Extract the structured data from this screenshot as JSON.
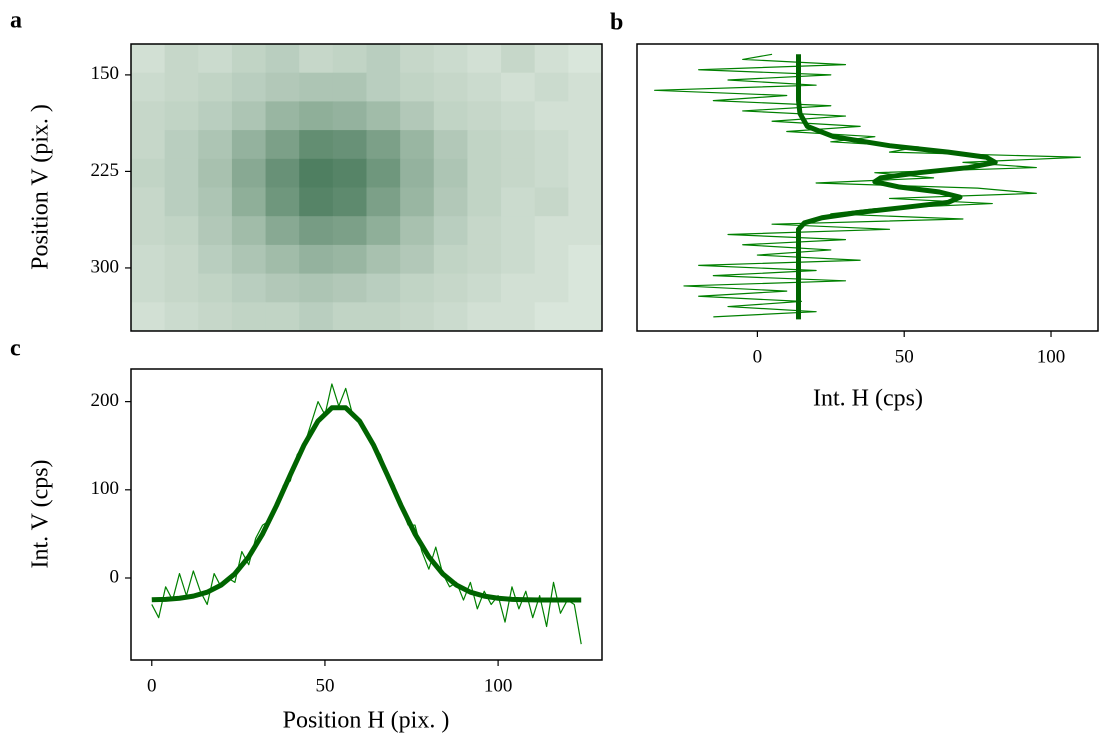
{
  "chart_data": [
    {
      "type": "heatmap",
      "panel_label": "a",
      "ylabel": "Position V (pix. )",
      "xlim": [
        -6,
        130
      ],
      "ylim": [
        349,
        126
      ],
      "yticks": [
        150,
        225,
        300
      ],
      "colormap": [
        "#f7fcf5",
        "#00441b"
      ],
      "values": [
        [
          0.15,
          0.2,
          0.18,
          0.22,
          0.25,
          0.2,
          0.22,
          0.25,
          0.2,
          0.18,
          0.15,
          0.2,
          0.15,
          0.12
        ],
        [
          0.18,
          0.2,
          0.22,
          0.25,
          0.28,
          0.3,
          0.3,
          0.25,
          0.22,
          0.2,
          0.18,
          0.15,
          0.18,
          0.15
        ],
        [
          0.2,
          0.22,
          0.25,
          0.3,
          0.38,
          0.42,
          0.4,
          0.35,
          0.28,
          0.22,
          0.2,
          0.18,
          0.15,
          0.15
        ],
        [
          0.2,
          0.25,
          0.3,
          0.4,
          0.5,
          0.6,
          0.58,
          0.5,
          0.38,
          0.28,
          0.22,
          0.2,
          0.18,
          0.15
        ],
        [
          0.22,
          0.25,
          0.32,
          0.45,
          0.58,
          0.68,
          0.65,
          0.55,
          0.4,
          0.3,
          0.22,
          0.2,
          0.18,
          0.15
        ],
        [
          0.2,
          0.25,
          0.3,
          0.42,
          0.55,
          0.65,
          0.62,
          0.5,
          0.38,
          0.28,
          0.22,
          0.18,
          0.2,
          0.15
        ],
        [
          0.2,
          0.22,
          0.28,
          0.35,
          0.45,
          0.52,
          0.5,
          0.42,
          0.32,
          0.25,
          0.2,
          0.18,
          0.15,
          0.15
        ],
        [
          0.18,
          0.2,
          0.25,
          0.3,
          0.35,
          0.4,
          0.38,
          0.32,
          0.28,
          0.22,
          0.2,
          0.18,
          0.15,
          0.12
        ],
        [
          0.18,
          0.2,
          0.22,
          0.25,
          0.28,
          0.3,
          0.28,
          0.25,
          0.22,
          0.2,
          0.18,
          0.15,
          0.15,
          0.12
        ],
        [
          0.15,
          0.18,
          0.2,
          0.22,
          0.22,
          0.25,
          0.22,
          0.22,
          0.2,
          0.18,
          0.15,
          0.15,
          0.12,
          0.12
        ]
      ]
    },
    {
      "type": "line",
      "panel_label": "b",
      "xlabel": "Int. H (cps)",
      "xlim": [
        -41,
        116
      ],
      "ylim": [
        349,
        126
      ],
      "xticks": [
        0,
        50,
        100
      ],
      "series": [
        {
          "color": "#008000",
          "width": 1.2,
          "y": [
            134,
            138,
            142,
            146,
            150,
            154,
            158,
            162,
            166,
            170,
            174,
            178,
            182,
            186,
            190,
            194,
            198,
            202,
            206,
            210,
            214,
            218,
            222,
            226,
            230,
            234,
            238,
            242,
            246,
            250,
            254,
            258,
            262,
            266,
            270,
            274,
            278,
            282,
            286,
            290,
            294,
            298,
            302,
            306,
            310,
            314,
            318,
            322,
            326,
            330,
            334,
            338
          ],
          "values": [
            5,
            -5,
            30,
            -20,
            25,
            -10,
            20,
            -35,
            10,
            -15,
            25,
            -5,
            30,
            5,
            35,
            10,
            40,
            25,
            55,
            45,
            110,
            70,
            95,
            40,
            60,
            20,
            75,
            95,
            45,
            80,
            40,
            25,
            70,
            5,
            45,
            -10,
            30,
            -5,
            25,
            0,
            35,
            -20,
            20,
            -15,
            30,
            -25,
            10,
            -20,
            15,
            -10,
            20,
            -15
          ]
        },
        {
          "color": "#006400",
          "width": 5,
          "y": [
            134,
            150,
            170,
            180,
            190,
            198,
            205,
            210,
            214,
            218,
            222,
            226,
            230,
            233,
            237,
            241,
            245,
            249,
            253,
            257,
            261,
            265,
            270,
            280,
            300,
            320,
            340
          ],
          "values": [
            14,
            14,
            14,
            14.5,
            17,
            26,
            45,
            65,
            78,
            81,
            72,
            55,
            42,
            40,
            48,
            62,
            69,
            65,
            50,
            34,
            22,
            16,
            14,
            14,
            14,
            14,
            14
          ]
        }
      ]
    },
    {
      "type": "line",
      "panel_label": "c",
      "xlabel": "Position H (pix. )",
      "ylabel": "Int. V (cps)",
      "xlim": [
        -6,
        130
      ],
      "ylim": [
        -93,
        237
      ],
      "xticks": [
        0,
        50,
        100
      ],
      "yticks": [
        0,
        100,
        200
      ],
      "series": [
        {
          "color": "#008000",
          "width": 1.2,
          "x": [
            0,
            2,
            4,
            6,
            8,
            10,
            12,
            14,
            16,
            18,
            20,
            22,
            24,
            26,
            28,
            30,
            32,
            34,
            36,
            38,
            40,
            42,
            44,
            46,
            48,
            50,
            52,
            54,
            56,
            58,
            60,
            62,
            64,
            66,
            68,
            70,
            72,
            74,
            76,
            78,
            80,
            82,
            84,
            86,
            88,
            90,
            92,
            94,
            96,
            98,
            100,
            102,
            104,
            106,
            108,
            110,
            112,
            114,
            116,
            118,
            120,
            122,
            124
          ],
          "values": [
            -30,
            -45,
            -10,
            -25,
            5,
            -20,
            8,
            -15,
            -30,
            5,
            -10,
            0,
            -5,
            30,
            15,
            45,
            60,
            65,
            80,
            105,
            110,
            140,
            150,
            175,
            200,
            185,
            220,
            195,
            215,
            185,
            180,
            165,
            150,
            140,
            120,
            105,
            80,
            60,
            60,
            30,
            10,
            35,
            5,
            -10,
            -5,
            -25,
            -5,
            -35,
            -15,
            -30,
            -20,
            -50,
            -10,
            -35,
            -15,
            -45,
            -20,
            -55,
            -5,
            -40,
            -25,
            -30,
            -75
          ]
        },
        {
          "color": "#006400",
          "width": 5,
          "x": [
            0,
            4,
            8,
            12,
            16,
            20,
            24,
            28,
            32,
            36,
            40,
            44,
            48,
            52,
            56,
            60,
            64,
            68,
            72,
            76,
            80,
            84,
            88,
            92,
            96,
            100,
            104,
            108,
            112,
            116,
            120,
            124
          ],
          "values": [
            -24.7,
            -24.2,
            -23,
            -20.6,
            -16.1,
            -8.1,
            4.8,
            24,
            50,
            82,
            117,
            151,
            178,
            193,
            193,
            178,
            151,
            117,
            82,
            50,
            24,
            4.8,
            -8.1,
            -16.1,
            -20.6,
            -23,
            -24.2,
            -24.7,
            -24.9,
            -25,
            -25,
            -25
          ]
        }
      ]
    }
  ]
}
